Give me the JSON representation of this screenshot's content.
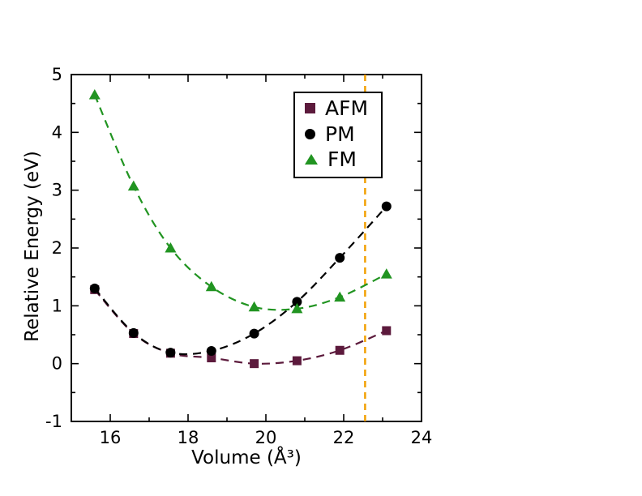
{
  "chart_data": {
    "type": "line",
    "title": "",
    "xlabel": "Volume (Å³)",
    "ylabel": "Relative Energy (eV)",
    "xlim": [
      15,
      24
    ],
    "ylim": [
      -1,
      5
    ],
    "xticks": [
      16,
      18,
      20,
      22,
      24
    ],
    "xminorticks": [
      17,
      19,
      21,
      23
    ],
    "yticks": [
      -1,
      0,
      1,
      2,
      3,
      4,
      5
    ],
    "yminorstep": 0.5,
    "grid": false,
    "legend_position": "upper center-right inside box",
    "line_style": "dashed",
    "series": [
      {
        "name": "AFM",
        "marker": "square",
        "color": "#5c1a3c",
        "x": [
          15.6,
          16.6,
          17.55,
          18.6,
          19.7,
          20.8,
          21.9,
          23.1
        ],
        "y": [
          1.28,
          0.52,
          0.18,
          0.1,
          0.0,
          0.05,
          0.23,
          0.57
        ]
      },
      {
        "name": "PM",
        "marker": "circle",
        "color": "#000000",
        "x": [
          15.6,
          16.6,
          17.55,
          18.6,
          19.7,
          20.8,
          21.9,
          23.1
        ],
        "y": [
          1.3,
          0.53,
          0.19,
          0.22,
          0.52,
          1.07,
          1.83,
          2.72
        ]
      },
      {
        "name": "FM",
        "marker": "triangle",
        "color": "#219421",
        "x": [
          15.6,
          16.6,
          17.55,
          18.6,
          19.7,
          20.8,
          21.9,
          23.1
        ],
        "y": [
          4.65,
          3.07,
          2.0,
          1.33,
          0.98,
          0.95,
          1.15,
          1.55
        ]
      }
    ],
    "vline": {
      "x": 22.55,
      "color": "#f2a104",
      "style": "dashed"
    }
  }
}
